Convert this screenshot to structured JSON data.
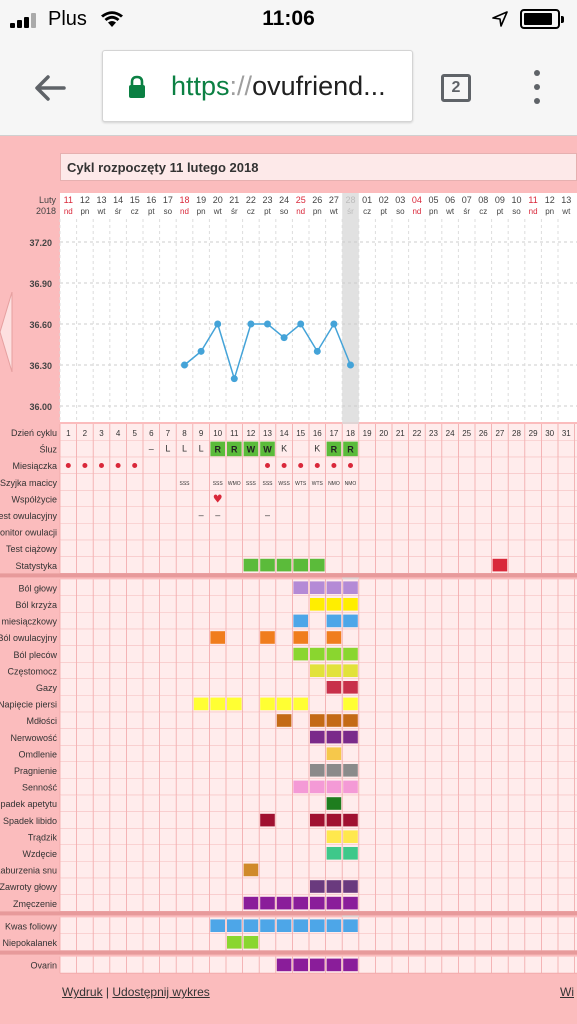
{
  "status_bar": {
    "carrier": "Plus",
    "time": "11:06"
  },
  "browser": {
    "url_scheme": "https",
    "url_sep": "://",
    "url_host": "ovufriend...",
    "tab_count": "2"
  },
  "chart": {
    "title": "Cykl rozpoczęty 11 lutego 2018",
    "month_label": [
      "Luty",
      "2018"
    ],
    "days": [
      {
        "n": "11",
        "d": "nd",
        "red": true
      },
      {
        "n": "12",
        "d": "pn"
      },
      {
        "n": "13",
        "d": "wt"
      },
      {
        "n": "14",
        "d": "śr"
      },
      {
        "n": "15",
        "d": "cz"
      },
      {
        "n": "16",
        "d": "pt"
      },
      {
        "n": "17",
        "d": "so"
      },
      {
        "n": "18",
        "d": "nd",
        "red": true
      },
      {
        "n": "19",
        "d": "pn"
      },
      {
        "n": "20",
        "d": "wt"
      },
      {
        "n": "21",
        "d": "śr"
      },
      {
        "n": "22",
        "d": "cz"
      },
      {
        "n": "23",
        "d": "pt"
      },
      {
        "n": "24",
        "d": "so"
      },
      {
        "n": "25",
        "d": "nd",
        "red": true
      },
      {
        "n": "26",
        "d": "pn"
      },
      {
        "n": "27",
        "d": "wt"
      },
      {
        "n": "28",
        "d": "śr"
      },
      {
        "n": "01",
        "d": "cz"
      },
      {
        "n": "02",
        "d": "pt"
      },
      {
        "n": "03",
        "d": "so"
      },
      {
        "n": "04",
        "d": "nd",
        "red": true
      },
      {
        "n": "05",
        "d": "pn"
      },
      {
        "n": "06",
        "d": "wt"
      },
      {
        "n": "07",
        "d": "śr"
      },
      {
        "n": "08",
        "d": "cz"
      },
      {
        "n": "09",
        "d": "pt"
      },
      {
        "n": "10",
        "d": "so"
      },
      {
        "n": "11",
        "d": "nd",
        "red": true
      },
      {
        "n": "12",
        "d": "pn"
      },
      {
        "n": "13",
        "d": "wt"
      }
    ],
    "y_ticks": [
      "37.20",
      "36.90",
      "36.60",
      "36.30",
      "36.00"
    ],
    "temps": [
      null,
      null,
      null,
      null,
      null,
      null,
      null,
      36.3,
      36.4,
      36.6,
      36.2,
      36.6,
      36.6,
      36.5,
      36.6,
      36.4,
      36.6,
      36.3
    ],
    "cycle_day_label": "Dzień cyklu",
    "cycle_days": [
      "1",
      "2",
      "3",
      "4",
      "5",
      "6",
      "7",
      "8",
      "9",
      "10",
      "11",
      "12",
      "13",
      "14",
      "15",
      "16",
      "17",
      "18",
      "19",
      "20",
      "21",
      "22",
      "23",
      "24",
      "25",
      "26",
      "27",
      "28",
      "29",
      "30",
      "31"
    ],
    "rows": [
      {
        "label": "Śluz",
        "cells": {
          "6": "–",
          "7": "L",
          "8": "L",
          "9": "L",
          "10": "R",
          "11": "R",
          "12": "W",
          "13": "W",
          "14": "K",
          "16": "K",
          "17": "R",
          "18": "R"
        }
      },
      {
        "label": "Miesiączka",
        "cells": {
          "1": "●",
          "2": "●",
          "3": "●",
          "4": "●",
          "5": "●",
          "13": "●",
          "14": "●",
          "15": "●",
          "16": "●",
          "17": "●",
          "18": "●"
        }
      },
      {
        "label": "Szyjka macicy",
        "cells": {
          "8": "SSS",
          "10": "SSS",
          "11": "WMO",
          "12": "SSS",
          "13": "SSS",
          "14": "WSS",
          "15": "WTS",
          "16": "WTS",
          "17": "NMO",
          "18": "NMO"
        }
      },
      {
        "label": "Współżycie",
        "cells": {
          "10": "♥"
        }
      },
      {
        "label": "Test owulacyjny",
        "cells": {
          "9": "–",
          "10": "–",
          "13": "–"
        }
      },
      {
        "label": "Monitor owulacji",
        "cells": {}
      },
      {
        "label": "Test ciążowy",
        "cells": {}
      },
      {
        "label": "Statystyka",
        "cells": {}
      }
    ],
    "symptoms": [
      "Ból głowy",
      "Ból krzyża",
      "Ból miesiączkowy",
      "Ból owulacyjny",
      "Ból pleców",
      "Częstomocz",
      "Gazy",
      "Napięcie piersi",
      "Mdłości",
      "Nerwowość",
      "Omdlenie",
      "Pragnienie",
      "Senność",
      "Spadek apetytu",
      "Spadek libido",
      "Trądzik",
      "Wzdęcie",
      "Zaburzenia snu",
      "Zawroty głowy",
      "Zmęczenie"
    ],
    "extras": [
      "Kwas foliowy",
      "Niepokalanek"
    ],
    "extras2": [
      "Ovarin"
    ],
    "colors": {
      "bg": "#fbbcbd",
      "plot_bg": "#ffffff",
      "grid": "#f1a7a8",
      "line": "#44a3d8",
      "current_day": "#d9d9d9",
      "green": "#5bbb3a",
      "red": "#d9283a"
    }
  },
  "footer": {
    "print": "Wydruk",
    "sep": "|",
    "share": "Udostępnij wykres",
    "right": "Wi"
  }
}
